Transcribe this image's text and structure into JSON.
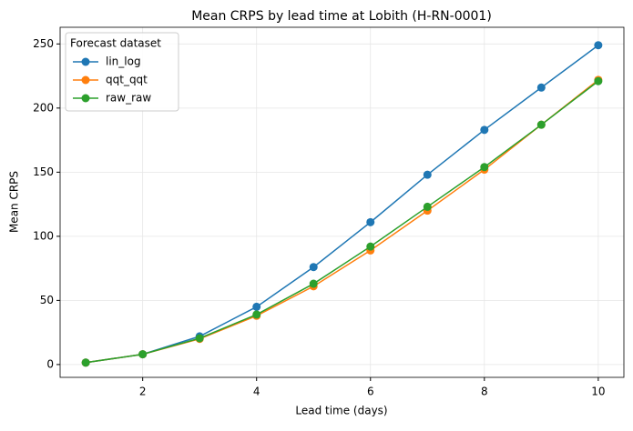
{
  "chart_data": {
    "type": "line",
    "title": "Mean CRPS by lead time at Lobith (H-RN-0001)",
    "x_label": "Lead time (days)",
    "y_label": "Mean CRPS",
    "legend_title": "Forecast dataset",
    "legend_position": "upper left",
    "grid": true,
    "x": [
      1,
      2,
      3,
      4,
      5,
      6,
      7,
      8,
      9,
      10
    ],
    "series": [
      {
        "name": "lin_log",
        "color": "#1f77b4",
        "values": [
          1.5,
          8,
          22,
          45,
          76,
          111,
          148,
          183,
          216,
          249
        ]
      },
      {
        "name": "qqt_qqt",
        "color": "#ff7f0e",
        "values": [
          1.5,
          8,
          20,
          38,
          61,
          89,
          120,
          152,
          187,
          222
        ]
      },
      {
        "name": "raw_raw",
        "color": "#2ca02c",
        "values": [
          1.5,
          8,
          20.5,
          39,
          63,
          92,
          123,
          154,
          187,
          221
        ]
      }
    ],
    "xlim": [
      0.55,
      10.45
    ],
    "xticks": [
      2,
      4,
      6,
      8,
      10
    ],
    "ylim": [
      -10,
      263
    ],
    "yticks": [
      0,
      50,
      100,
      150,
      200,
      250
    ]
  }
}
